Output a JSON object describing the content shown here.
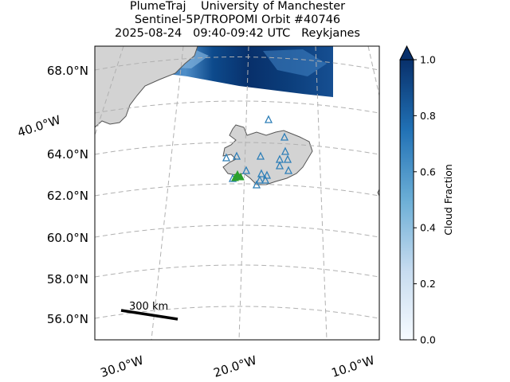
{
  "title": {
    "line1": "PlumeTraj    University of Manchester",
    "line2": "Sentinel-5P/TROPOMI Orbit #40746",
    "line3": "2025-08-24   09:40-09:42 UTC   Reykjanes"
  },
  "map": {
    "lat_labels": [
      "68.0°N",
      "64.0°N",
      "62.0°N",
      "60.0°N",
      "58.0°N",
      "56.0°N"
    ],
    "lon_labels": [
      "30.0°W",
      "20.0°W",
      "10.0°W"
    ],
    "tilted_lat_label": "40.0°W",
    "scale_bar_label": "300 km",
    "land_color": "#d3d3d3",
    "coast_color": "#555555",
    "grid_color": "#b0b0b0",
    "volcano_marker_color": "#2e7fb8",
    "source_marker_color": "#2ca02c"
  },
  "colorbar": {
    "label": "Cloud Fraction",
    "ticks": [
      "0.0",
      "0.2",
      "0.4",
      "0.6",
      "0.8",
      "1.0"
    ],
    "values": [
      0.0,
      0.2,
      0.4,
      0.6,
      0.8,
      1.0
    ],
    "range": [
      0.0,
      1.0
    ],
    "extend": "max",
    "cmap_start": "#f7fbff",
    "cmap_mid": "#6baed6",
    "cmap_end": "#08306b"
  }
}
